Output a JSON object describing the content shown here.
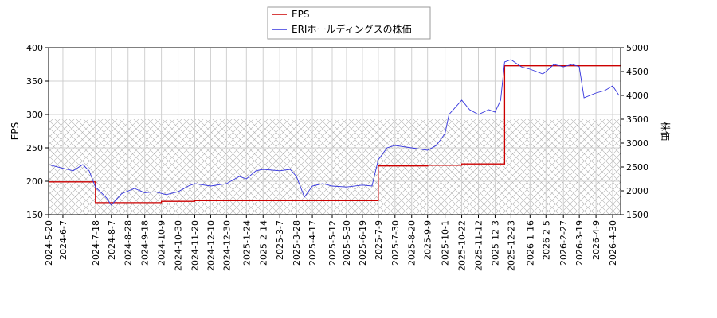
{
  "chart_data": {
    "type": "line",
    "legend": {
      "placement": "top-center",
      "entries": [
        {
          "label": "EPS",
          "color": "#cc0000"
        },
        {
          "label": "ERIホールディングスの株価",
          "color": "#3333dd"
        }
      ]
    },
    "grid": true,
    "hatched_region": {
      "axis": "right",
      "from": 1500,
      "to": 3500
    },
    "x_axis": {
      "type": "date",
      "range": [
        "2024-05-20",
        "2026-05-10"
      ],
      "tick_labels": [
        "2024-5-20",
        "2024-6-7",
        "2024-7-18",
        "2024-8-7",
        "2024-8-28",
        "2024-9-18",
        "2024-10-9",
        "2024-10-30",
        "2024-11-20",
        "2024-12-10",
        "2024-12-30",
        "2025-1-24",
        "2025-2-14",
        "2025-3-7",
        "2025-3-28",
        "2025-4-17",
        "2025-5-12",
        "2025-5-30",
        "2025-6-19",
        "2025-7-9",
        "2025-7-30",
        "2025-8-20",
        "2025-9-9",
        "2025-10-1",
        "2025-10-22",
        "2025-11-12",
        "2025-12-3",
        "2025-12-23",
        "2026-1-16",
        "2026-2-5",
        "2026-2-27",
        "2026-3-19",
        "2026-4-9",
        "2026-4-30"
      ]
    },
    "y_left": {
      "label": "EPS",
      "range": [
        150,
        400
      ],
      "ticks": [
        150,
        200,
        250,
        300,
        350,
        400
      ]
    },
    "y_right": {
      "label": "株価",
      "range": [
        1500,
        5000
      ],
      "ticks": [
        1500,
        2000,
        2500,
        3000,
        3500,
        4000,
        4500,
        5000
      ]
    },
    "series": [
      {
        "name": "EPS",
        "axis": "left",
        "color": "#cc0000",
        "step": true,
        "points": [
          [
            "2024-05-20",
            199
          ],
          [
            "2024-07-18",
            168
          ],
          [
            "2024-10-09",
            170
          ],
          [
            "2024-11-20",
            171
          ],
          [
            "2025-03-28",
            171
          ],
          [
            "2025-06-30",
            171
          ],
          [
            "2025-07-09",
            223
          ],
          [
            "2025-09-09",
            224
          ],
          [
            "2025-10-22",
            226
          ],
          [
            "2025-12-10",
            226
          ],
          [
            "2025-12-15",
            373
          ],
          [
            "2026-05-10",
            374
          ]
        ]
      },
      {
        "name": "ERIホールディングスの株価",
        "axis": "right",
        "color": "#3333dd",
        "step": false,
        "points": [
          [
            "2024-05-20",
            2550
          ],
          [
            "2024-06-05",
            2480
          ],
          [
            "2024-06-20",
            2420
          ],
          [
            "2024-07-02",
            2550
          ],
          [
            "2024-07-10",
            2420
          ],
          [
            "2024-07-18",
            2080
          ],
          [
            "2024-08-01",
            1850
          ],
          [
            "2024-08-07",
            1700
          ],
          [
            "2024-08-20",
            1940
          ],
          [
            "2024-09-05",
            2050
          ],
          [
            "2024-09-18",
            1960
          ],
          [
            "2024-10-01",
            1980
          ],
          [
            "2024-10-15",
            1920
          ],
          [
            "2024-10-30",
            1980
          ],
          [
            "2024-11-12",
            2100
          ],
          [
            "2024-11-20",
            2150
          ],
          [
            "2024-12-10",
            2100
          ],
          [
            "2024-12-30",
            2150
          ],
          [
            "2025-01-15",
            2300
          ],
          [
            "2025-01-24",
            2250
          ],
          [
            "2025-02-05",
            2420
          ],
          [
            "2025-02-14",
            2450
          ],
          [
            "2025-03-07",
            2420
          ],
          [
            "2025-03-20",
            2450
          ],
          [
            "2025-03-28",
            2300
          ],
          [
            "2025-04-07",
            1870
          ],
          [
            "2025-04-17",
            2100
          ],
          [
            "2025-04-30",
            2150
          ],
          [
            "2025-05-12",
            2100
          ],
          [
            "2025-05-30",
            2080
          ],
          [
            "2025-06-19",
            2120
          ],
          [
            "2025-07-01",
            2100
          ],
          [
            "2025-07-09",
            2650
          ],
          [
            "2025-07-20",
            2900
          ],
          [
            "2025-07-30",
            2950
          ],
          [
            "2025-08-20",
            2900
          ],
          [
            "2025-09-09",
            2850
          ],
          [
            "2025-09-20",
            2950
          ],
          [
            "2025-10-01",
            3200
          ],
          [
            "2025-10-06",
            3600
          ],
          [
            "2025-10-22",
            3900
          ],
          [
            "2025-11-01",
            3700
          ],
          [
            "2025-11-12",
            3600
          ],
          [
            "2025-11-25",
            3700
          ],
          [
            "2025-12-03",
            3650
          ],
          [
            "2025-12-10",
            3900
          ],
          [
            "2025-12-15",
            4700
          ],
          [
            "2025-12-23",
            4750
          ],
          [
            "2026-01-05",
            4600
          ],
          [
            "2026-01-16",
            4550
          ],
          [
            "2026-02-01",
            4450
          ],
          [
            "2026-02-05",
            4500
          ],
          [
            "2026-02-15",
            4650
          ],
          [
            "2026-02-27",
            4600
          ],
          [
            "2026-03-10",
            4650
          ],
          [
            "2026-03-19",
            4600
          ],
          [
            "2026-03-25",
            3950
          ],
          [
            "2026-04-09",
            4050
          ],
          [
            "2026-04-20",
            4100
          ],
          [
            "2026-04-30",
            4200
          ],
          [
            "2026-05-08",
            4000
          ]
        ]
      }
    ]
  }
}
